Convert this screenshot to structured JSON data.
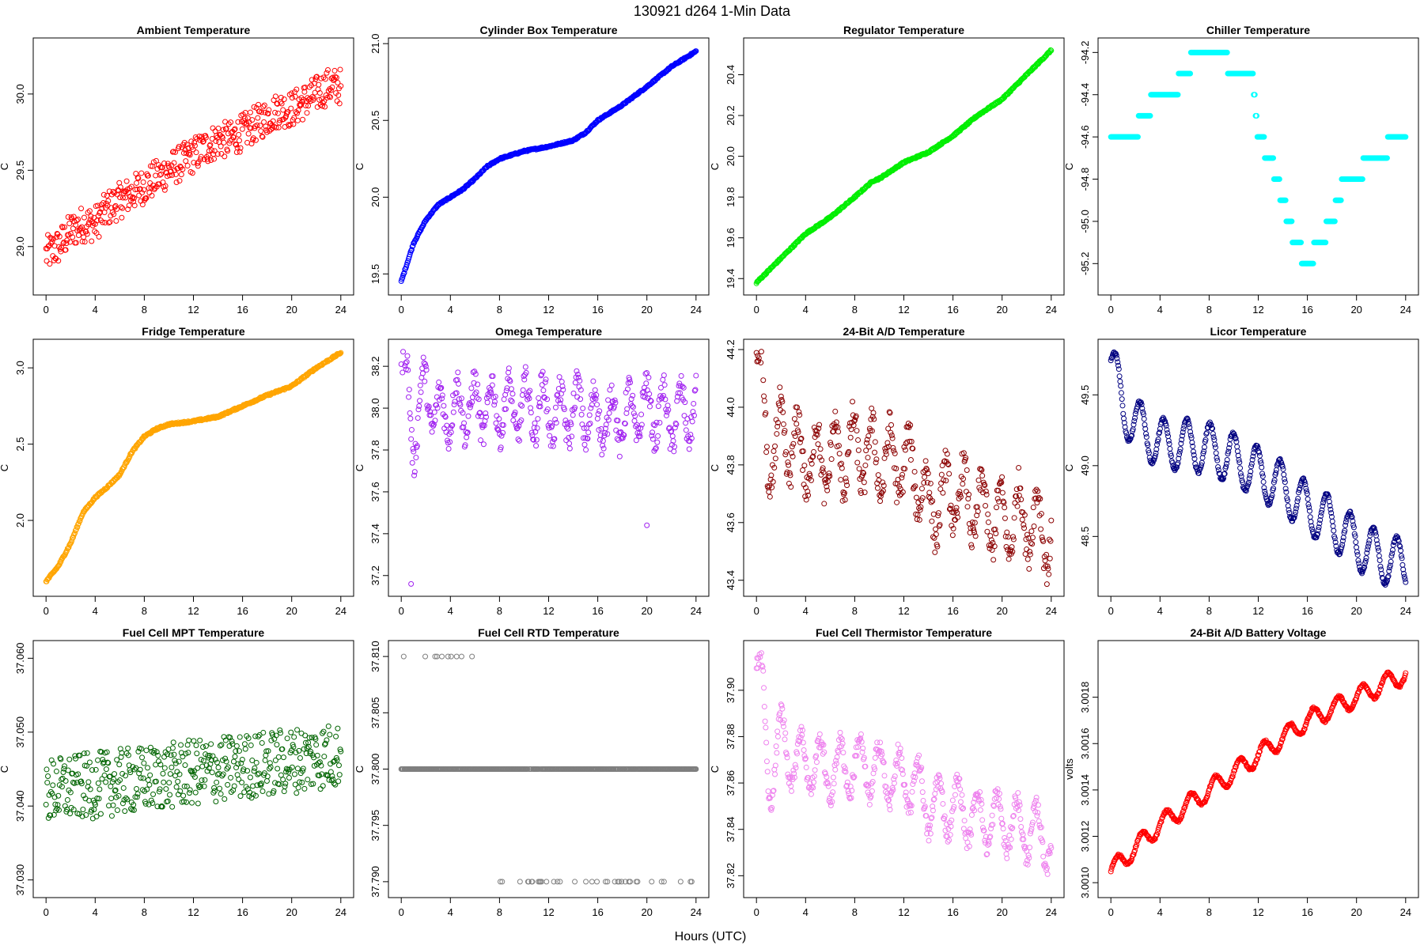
{
  "figure": {
    "title": "130921    d264    1-Min Data",
    "xlabel": "Hours (UTC)"
  },
  "chart_data": [
    {
      "type": "scatter",
      "title": "Ambient Temperature",
      "ylabel": "C",
      "color": "#ff0000",
      "xlim": [
        0,
        24
      ],
      "ylim": [
        28.75,
        30.3
      ],
      "xticks": [
        0,
        4,
        8,
        12,
        16,
        20,
        24
      ],
      "xtick_labels": [
        "0",
        "4",
        "8",
        "12",
        "16",
        "20",
        "24"
      ],
      "yticks": [
        29.0,
        29.5,
        30.0
      ],
      "ytick_labels": [
        "29.0",
        "29.5",
        "30.0"
      ],
      "series": [
        {
          "x": [
            0,
            1,
            2,
            3,
            4,
            5,
            6,
            7,
            8,
            9,
            10,
            11,
            12,
            13,
            14,
            15,
            16,
            17,
            18,
            19,
            20,
            21,
            22,
            23,
            24
          ],
          "y": [
            28.95,
            29.0,
            29.1,
            29.15,
            29.15,
            29.25,
            29.3,
            29.35,
            29.4,
            29.45,
            29.5,
            29.55,
            29.6,
            29.65,
            29.7,
            29.7,
            29.75,
            29.8,
            29.85,
            29.9,
            29.9,
            29.95,
            30.0,
            30.05,
            30.05
          ],
          "noise": 0.12
        }
      ]
    },
    {
      "type": "scatter",
      "title": "Cylinder Box Temperature",
      "ylabel": "C",
      "color": "#0000ff",
      "xlim": [
        0,
        24
      ],
      "ylim": [
        19.43,
        20.97
      ],
      "xticks": [
        0,
        4,
        8,
        12,
        16,
        20,
        24
      ],
      "xtick_labels": [
        "0",
        "4",
        "8",
        "12",
        "16",
        "20",
        "24"
      ],
      "yticks": [
        19.5,
        20.0,
        20.5,
        21.0
      ],
      "ytick_labels": [
        "19.5",
        "20.0",
        "20.5",
        "21.0"
      ],
      "series": [
        {
          "x": [
            0,
            1,
            2,
            3,
            4,
            5,
            6,
            7,
            8,
            10,
            12,
            14,
            15,
            16,
            18,
            20,
            22,
            24
          ],
          "y": [
            19.45,
            19.7,
            19.85,
            19.95,
            20.0,
            20.05,
            20.12,
            20.2,
            20.25,
            20.3,
            20.33,
            20.37,
            20.42,
            20.5,
            20.6,
            20.72,
            20.85,
            20.95
          ],
          "noise": 0.005
        }
      ]
    },
    {
      "type": "scatter",
      "title": "Regulator Temperature",
      "ylabel": "C",
      "color": "#00ee00",
      "xlim": [
        0,
        24
      ],
      "ylim": [
        19.37,
        20.53
      ],
      "xticks": [
        0,
        4,
        8,
        12,
        16,
        20,
        24
      ],
      "xtick_labels": [
        "0",
        "4",
        "8",
        "12",
        "16",
        "20",
        "24"
      ],
      "yticks": [
        19.4,
        19.6,
        19.8,
        20.0,
        20.2,
        20.4
      ],
      "ytick_labels": [
        "19.4",
        "19.6",
        "19.8",
        "20.0",
        "20.2",
        "20.4"
      ],
      "series": [
        {
          "x": [
            0,
            2,
            4,
            6,
            8,
            9.5,
            10,
            12,
            14,
            16,
            18,
            20,
            22,
            24
          ],
          "y": [
            19.38,
            19.5,
            19.62,
            19.7,
            19.8,
            19.88,
            19.89,
            19.97,
            20.02,
            20.1,
            20.2,
            20.28,
            20.4,
            20.52
          ],
          "noise": 0.004
        }
      ]
    },
    {
      "type": "scatter",
      "title": "Chiller Temperature",
      "ylabel": "C",
      "color": "#00ffff",
      "xlim": [
        0,
        24
      ],
      "ylim": [
        -95.3,
        -94.18
      ],
      "xticks": [
        0,
        4,
        8,
        12,
        16,
        20,
        24
      ],
      "xtick_labels": [
        "0",
        "4",
        "8",
        "12",
        "16",
        "20",
        "24"
      ],
      "yticks": [
        -95.2,
        -95.0,
        -94.8,
        -94.6,
        -94.4,
        -94.2
      ],
      "ytick_labels": [
        "-95.2",
        "-95.0",
        "-94.8",
        "-94.6",
        "-94.4",
        "-94.2"
      ],
      "series": [
        {
          "x": [
            0,
            2,
            2.5,
            4,
            5,
            6,
            7,
            9,
            10,
            11.5,
            12,
            13,
            14,
            15,
            16,
            17,
            18,
            19,
            20,
            21,
            22,
            23,
            24
          ],
          "y": [
            -94.6,
            -94.6,
            -94.5,
            -94.4,
            -94.4,
            -94.3,
            -94.2,
            -94.2,
            -94.3,
            -94.3,
            -94.6,
            -94.7,
            -94.9,
            -95.1,
            -95.2,
            -95.1,
            -95.0,
            -94.8,
            -94.8,
            -94.7,
            -94.7,
            -94.6,
            -94.6
          ],
          "noise": 0,
          "quantize": 0.1
        }
      ]
    },
    {
      "type": "scatter",
      "title": "Fridge Temperature",
      "ylabel": "C",
      "color": "#ffa500",
      "xlim": [
        0,
        24
      ],
      "ylim": [
        1.57,
        3.12
      ],
      "xticks": [
        0,
        4,
        8,
        12,
        16,
        20,
        24
      ],
      "xtick_labels": [
        "0",
        "4",
        "8",
        "12",
        "16",
        "20",
        "24"
      ],
      "yticks": [
        2.0,
        2.5,
        3.0
      ],
      "ytick_labels": [
        "2.0",
        "2.5",
        "3.0"
      ],
      "series": [
        {
          "x": [
            0,
            1,
            2,
            3,
            4,
            5,
            6,
            7,
            8,
            9,
            10,
            12,
            14,
            16,
            18,
            20,
            22,
            24
          ],
          "y": [
            1.6,
            1.7,
            1.85,
            2.05,
            2.15,
            2.22,
            2.3,
            2.45,
            2.55,
            2.6,
            2.63,
            2.65,
            2.68,
            2.75,
            2.82,
            2.88,
            3.0,
            3.1
          ],
          "noise": 0.006
        }
      ]
    },
    {
      "type": "scatter",
      "title": "Omega Temperature",
      "ylabel": "C",
      "color": "#a020f0",
      "xlim": [
        0,
        24
      ],
      "ylim": [
        37.15,
        38.28
      ],
      "xticks": [
        0,
        4,
        8,
        12,
        16,
        20,
        24
      ],
      "xtick_labels": [
        "0",
        "4",
        "8",
        "12",
        "16",
        "20",
        "24"
      ],
      "yticks": [
        37.2,
        37.4,
        37.6,
        37.8,
        38.0,
        38.2
      ],
      "ytick_labels": [
        "37.2",
        "37.4",
        "37.6",
        "37.8",
        "38.0",
        "38.2"
      ],
      "series": [
        {
          "x": [
            0,
            0.5,
            1,
            1.5,
            2,
            3,
            4,
            6,
            8,
            10,
            12,
            13,
            14,
            16,
            18,
            20,
            22,
            24
          ],
          "y": [
            38.2,
            38.1,
            37.85,
            38.0,
            38.1,
            37.95,
            38.0,
            38.0,
            38.0,
            38.0,
            38.0,
            37.95,
            38.0,
            37.95,
            37.95,
            38.0,
            37.95,
            38.0
          ],
          "noise": 0.07,
          "wave": [
            0.13,
            1.4
          ]
        }
      ],
      "outliers": [
        {
          "x": 0.8,
          "y": 37.16
        },
        {
          "x": 20,
          "y": 37.44
        }
      ]
    },
    {
      "type": "scatter",
      "title": "24-Bit A/D Temperature",
      "ylabel": "C",
      "color": "#8b0000",
      "xlim": [
        0,
        24
      ],
      "ylim": [
        43.38,
        44.2
      ],
      "xticks": [
        0,
        4,
        8,
        12,
        16,
        20,
        24
      ],
      "xtick_labels": [
        "0",
        "4",
        "8",
        "12",
        "16",
        "20",
        "24"
      ],
      "yticks": [
        43.4,
        43.6,
        43.8,
        44.0,
        44.2
      ],
      "ytick_labels": [
        "43.4",
        "43.6",
        "43.8",
        "44.0",
        "44.2"
      ],
      "series": [
        {
          "x": [
            0,
            0.5,
            1,
            2,
            4,
            6,
            8,
            10,
            12,
            13,
            14,
            16,
            18,
            20,
            22,
            24
          ],
          "y": [
            44.15,
            44.05,
            43.8,
            43.9,
            43.82,
            43.82,
            43.85,
            43.82,
            43.8,
            43.78,
            43.65,
            43.7,
            43.65,
            43.6,
            43.62,
            43.55
          ],
          "noise": 0.06,
          "wave": [
            0.12,
            1.5
          ]
        }
      ]
    },
    {
      "type": "scatter",
      "title": "Licor Temperature",
      "ylabel": "C",
      "color": "#000080",
      "xlim": [
        0,
        24
      ],
      "ylim": [
        48.15,
        49.82
      ],
      "xticks": [
        0,
        4,
        8,
        12,
        16,
        20,
        24
      ],
      "xtick_labels": [
        "0",
        "4",
        "8",
        "12",
        "16",
        "20",
        "24"
      ],
      "yticks": [
        48.5,
        49.0,
        49.5
      ],
      "ytick_labels": [
        "48.5",
        "49.0",
        "49.5"
      ],
      "series": [
        {
          "x": [
            0,
            1,
            2,
            4,
            6,
            8,
            10,
            12,
            14,
            16,
            18,
            20,
            22,
            24
          ],
          "y": [
            49.75,
            49.4,
            49.3,
            49.15,
            49.15,
            49.12,
            49.05,
            48.95,
            48.85,
            48.7,
            48.6,
            48.45,
            48.35,
            48.3
          ],
          "noise": 0.01,
          "wave": [
            0.18,
            1.9
          ]
        }
      ]
    },
    {
      "type": "scatter",
      "title": "Fuel Cell MPT Temperature",
      "ylabel": "C",
      "color": "#006400",
      "xlim": [
        0,
        24
      ],
      "ylim": [
        37.029,
        37.061
      ],
      "xticks": [
        0,
        4,
        8,
        12,
        16,
        20,
        24
      ],
      "xtick_labels": [
        "0",
        "4",
        "8",
        "12",
        "16",
        "20",
        "24"
      ],
      "yticks": [
        37.03,
        37.04,
        37.05,
        37.06
      ],
      "ytick_labels": [
        "37.030",
        "37.040",
        "37.050",
        "37.060"
      ],
      "series": [
        {
          "x": [
            0,
            24
          ],
          "y": [
            37.042,
            37.047
          ],
          "noise": 0.0045
        }
      ]
    },
    {
      "type": "scatter",
      "title": "Fuel Cell RTD Temperature",
      "ylabel": "C",
      "color": "#7f7f7f",
      "xlim": [
        0,
        24
      ],
      "ylim": [
        37.7895,
        37.8105
      ],
      "xticks": [
        0,
        4,
        8,
        12,
        16,
        20,
        24
      ],
      "xtick_labels": [
        "0",
        "4",
        "8",
        "12",
        "16",
        "20",
        "24"
      ],
      "yticks": [
        37.79,
        37.795,
        37.8,
        37.805,
        37.81
      ],
      "ytick_labels": [
        "37.790",
        "37.795",
        "37.800",
        "37.805",
        "37.810"
      ],
      "series": [
        {
          "x": [
            0,
            24
          ],
          "y": [
            37.8,
            37.8
          ],
          "noise": 0,
          "levels": [
            37.79,
            37.8,
            37.81
          ]
        }
      ]
    },
    {
      "type": "scatter",
      "title": "Fuel Cell Thermistor Temperature",
      "ylabel": "C",
      "color": "#ee82ee",
      "xlim": [
        0,
        24
      ],
      "ylim": [
        37.815,
        37.917
      ],
      "xticks": [
        0,
        4,
        8,
        12,
        16,
        20,
        24
      ],
      "xtick_labels": [
        "0",
        "4",
        "8",
        "12",
        "16",
        "20",
        "24"
      ],
      "yticks": [
        37.82,
        37.84,
        37.86,
        37.88,
        37.9
      ],
      "ytick_labels": [
        "37.82",
        "37.84",
        "37.86",
        "37.88",
        "37.90"
      ],
      "series": [
        {
          "x": [
            0,
            0.5,
            1,
            2,
            3,
            4,
            6,
            8,
            10,
            12,
            13,
            14,
            16,
            18,
            20,
            22,
            24
          ],
          "y": [
            37.91,
            37.9,
            37.86,
            37.88,
            37.87,
            37.87,
            37.865,
            37.868,
            37.865,
            37.86,
            37.86,
            37.85,
            37.85,
            37.845,
            37.843,
            37.84,
            37.835
          ],
          "noise": 0.004,
          "wave": [
            0.012,
            1.6
          ]
        }
      ]
    },
    {
      "type": "scatter",
      "title": "24-Bit A/D Battery Voltage",
      "ylabel": "volts",
      "color": "#ff0000",
      "xlim": [
        0,
        24
      ],
      "ylim": [
        3.00098,
        3.002
      ],
      "xticks": [
        0,
        4,
        8,
        12,
        16,
        20,
        24
      ],
      "xtick_labels": [
        "0",
        "4",
        "8",
        "12",
        "16",
        "20",
        "24"
      ],
      "yticks": [
        3.001,
        3.0012,
        3.0014,
        3.0016,
        3.0018
      ],
      "ytick_labels": [
        "3.0010",
        "3.0012",
        "3.0014",
        "3.0016",
        "3.0018"
      ],
      "series": [
        {
          "x": [
            0,
            4,
            8,
            12,
            16,
            20,
            24
          ],
          "y": [
            3.00105,
            3.00125,
            3.0014,
            3.00155,
            3.0017,
            3.0018,
            3.0019
          ],
          "noise": 5e-06,
          "wave": [
            4e-05,
            2.0
          ]
        }
      ]
    }
  ]
}
